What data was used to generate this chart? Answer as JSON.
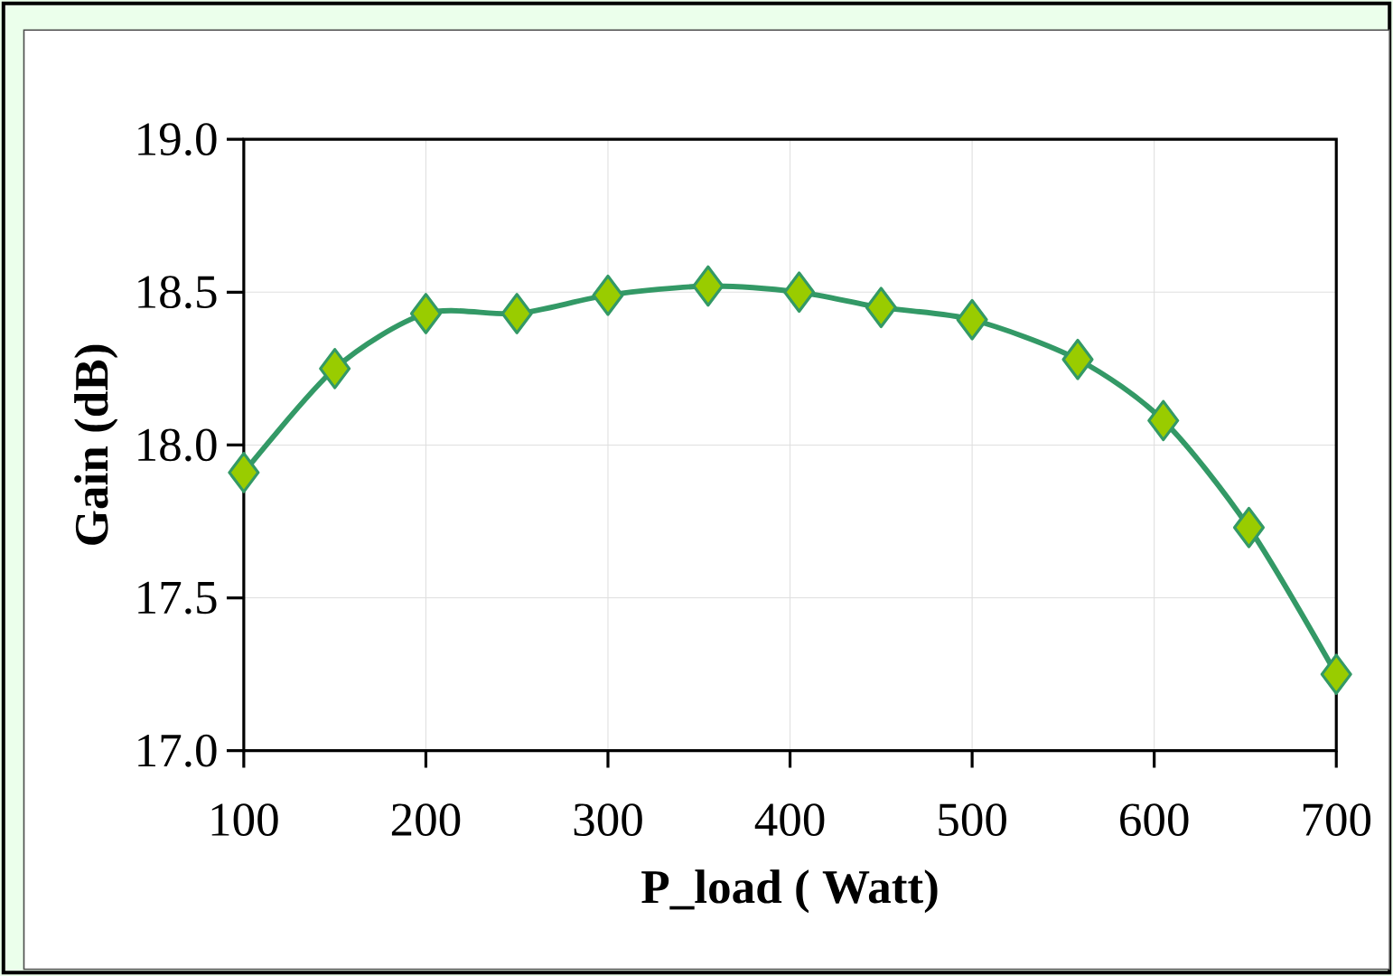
{
  "chart_data": {
    "type": "line",
    "xlabel": "P_load ( Watt)",
    "ylabel": "Gain (dB)",
    "x": [
      100,
      150,
      200,
      250,
      300,
      355,
      405,
      450,
      500,
      558,
      605,
      652,
      700
    ],
    "series": [
      {
        "color": "#339966",
        "values": [
          17.91,
          18.25,
          18.43,
          18.43,
          18.49,
          18.52,
          18.5,
          18.45,
          18.41,
          18.28,
          18.08,
          17.73,
          17.25
        ]
      }
    ],
    "xlim": [
      100,
      700
    ],
    "xticks": [
      100,
      200,
      300,
      400,
      500,
      600,
      700
    ],
    "ylim": [
      17,
      19
    ],
    "yticks": [
      {
        "value": 17,
        "label": "17.0"
      },
      17.5,
      {
        "value": 18,
        "label": "18.0"
      },
      18.5,
      {
        "value": 19,
        "label": "19.0"
      }
    ],
    "grid": true,
    "marker": "diamond",
    "line_style": "solid"
  }
}
